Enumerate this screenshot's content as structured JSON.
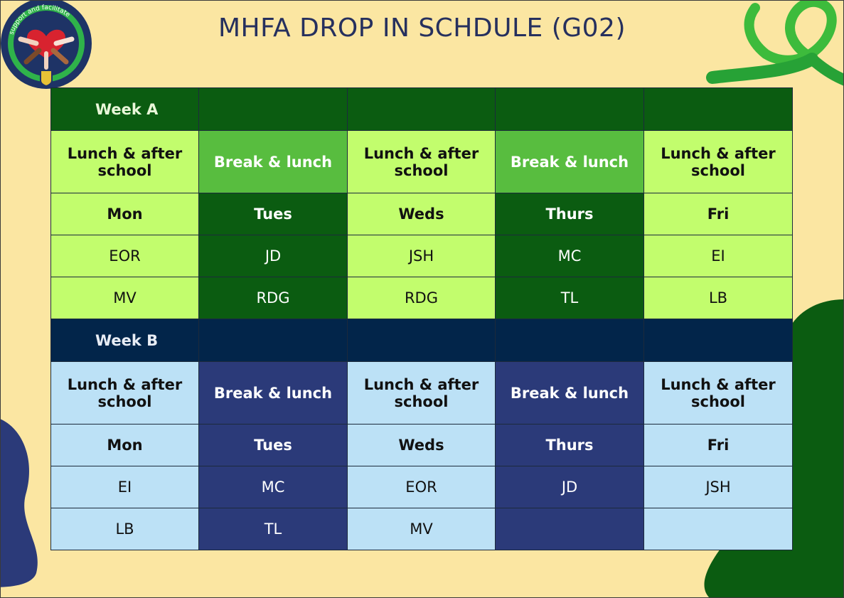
{
  "title": "MHFA DROP IN SCHDULE (G02)",
  "logo_text": "support and facilitate",
  "colors": {
    "background": "#fbe6a2",
    "week_a_dark": "#0b5c11",
    "week_a_light": "#c2fd6d",
    "week_a_mid": "#58bd3f",
    "week_b_navy": "#02254a",
    "week_b_light": "#bce1f6",
    "week_b_blue": "#2b3a79",
    "title_color": "#26305e"
  },
  "week_a": {
    "label": "Week A",
    "sessions": [
      "Lunch & after school",
      "Break & lunch",
      "Lunch & after school",
      "Break & lunch",
      "Lunch & after school"
    ],
    "days": [
      "Mon",
      "Tues",
      "Weds",
      "Thurs",
      "Fri"
    ],
    "rows": [
      [
        "EOR",
        "JD",
        "JSH",
        "MC",
        "EI"
      ],
      [
        "MV",
        "RDG",
        "RDG",
        "TL",
        "LB"
      ]
    ]
  },
  "week_b": {
    "label": "Week B",
    "sessions": [
      "Lunch & after school",
      "Break & lunch",
      "Lunch & after school",
      "Break & lunch",
      "Lunch & after school"
    ],
    "days": [
      "Mon",
      "Tues",
      "Weds",
      "Thurs",
      "Fri"
    ],
    "rows": [
      [
        "EI",
        "MC",
        "EOR",
        "JD",
        "JSH"
      ],
      [
        "LB",
        "TL",
        "MV",
        "",
        ""
      ]
    ]
  }
}
